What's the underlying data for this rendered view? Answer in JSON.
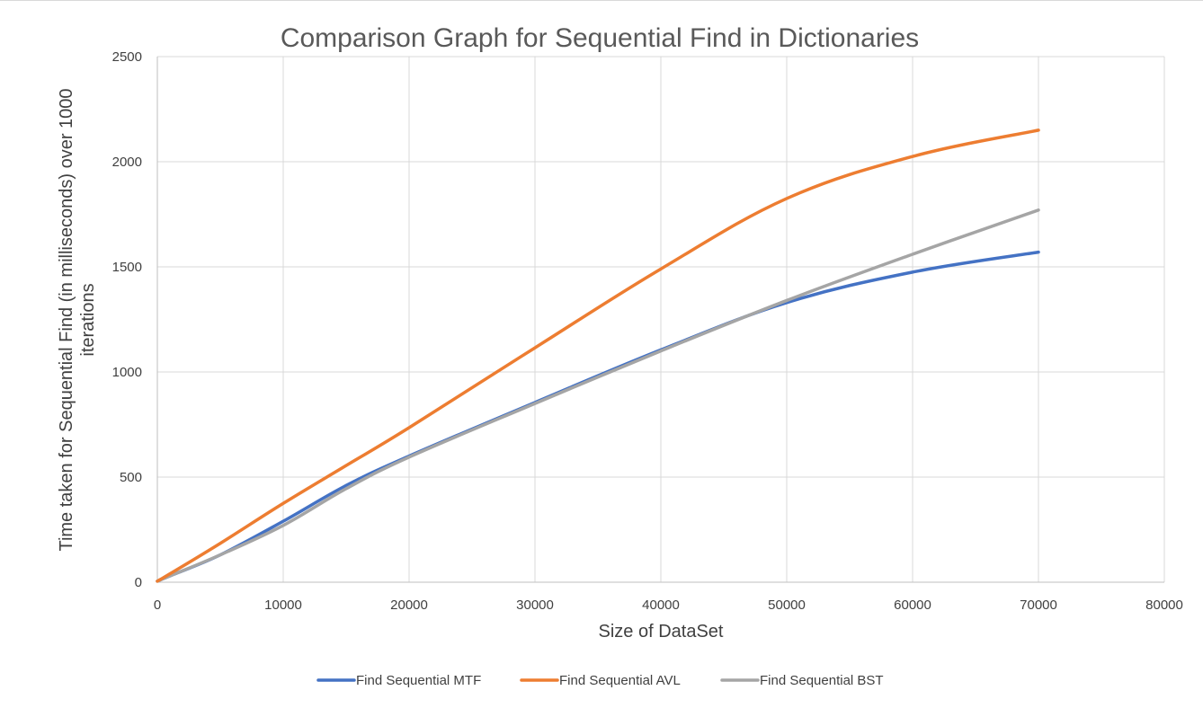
{
  "chart_data": {
    "type": "line",
    "title": "Comparison Graph for Sequential Find in Dictionaries",
    "xlabel": "Size of DataSet",
    "ylabel_lines": [
      "Time taken for Sequential Find (in milliseconds) over 1000",
      "iterations"
    ],
    "xlim": [
      0,
      80000
    ],
    "ylim": [
      0,
      2500
    ],
    "xticks": [
      "0",
      "10000",
      "20000",
      "30000",
      "40000",
      "50000",
      "60000",
      "70000",
      "80000"
    ],
    "yticks": [
      "0",
      "500",
      "1000",
      "1500",
      "2000",
      "2500"
    ],
    "grid": true,
    "legend_position": "bottom",
    "series": [
      {
        "name": "Find Sequential MTF",
        "color": "#4472c4",
        "x": [
          0,
          1000,
          5000,
          10000,
          15000,
          20000,
          30000,
          40000,
          50000,
          60000,
          70000
        ],
        "y": [
          5,
          30,
          130,
          290,
          460,
          600,
          855,
          1105,
          1330,
          1475,
          1570
        ]
      },
      {
        "name": "Find Sequential AVL",
        "color": "#ed7d31",
        "x": [
          0,
          1000,
          5000,
          10000,
          15000,
          20000,
          30000,
          40000,
          50000,
          60000,
          70000
        ],
        "y": [
          5,
          40,
          185,
          375,
          555,
          735,
          1115,
          1490,
          1825,
          2025,
          2150
        ]
      },
      {
        "name": "Find Sequential BST",
        "color": "#a5a5a5",
        "x": [
          0,
          1000,
          5000,
          10000,
          15000,
          20000,
          30000,
          40000,
          50000,
          60000,
          70000
        ],
        "y": [
          5,
          30,
          130,
          270,
          445,
          595,
          850,
          1100,
          1340,
          1560,
          1770
        ]
      }
    ]
  }
}
